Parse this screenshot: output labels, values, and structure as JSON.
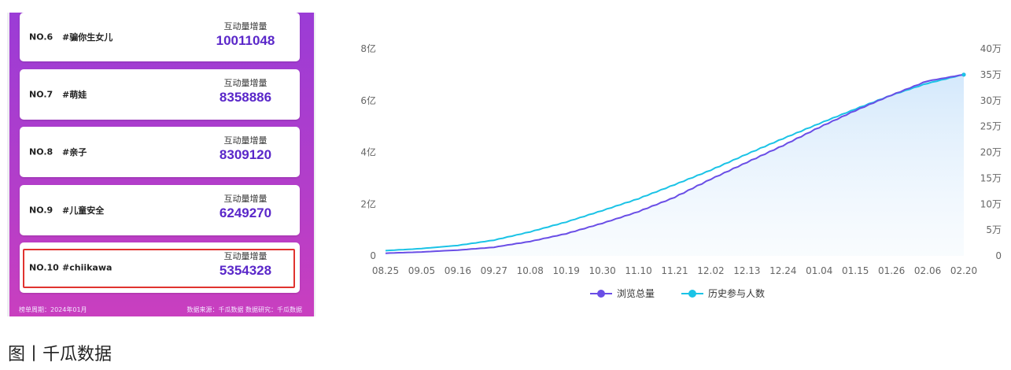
{
  "ranking": {
    "metric_label": "互动量增量",
    "items": [
      {
        "rank": "NO.6",
        "tag": "#骗你生女儿",
        "value": "10011048",
        "highlight": false
      },
      {
        "rank": "NO.7",
        "tag": "#萌娃",
        "value": "8358886",
        "highlight": false
      },
      {
        "rank": "NO.8",
        "tag": "#亲子",
        "value": "8309120",
        "highlight": false
      },
      {
        "rank": "NO.9",
        "tag": "#儿童安全",
        "value": "6249270",
        "highlight": false
      },
      {
        "rank": "NO.10",
        "tag": "#chiikawa",
        "value": "5354328",
        "highlight": true
      }
    ],
    "footer_left": "榜单周期：2024年01月",
    "footer_right": "数据来源：千瓜数据    数据研究：千瓜数据"
  },
  "chart_data": {
    "type": "line",
    "x": [
      "08.25",
      "09.05",
      "09.16",
      "09.27",
      "10.08",
      "10.19",
      "10.30",
      "11.10",
      "11.21",
      "12.02",
      "12.13",
      "12.24",
      "01.04",
      "01.15",
      "01.26",
      "02.06",
      "02.20"
    ],
    "series": [
      {
        "name": "浏览总量",
        "axis": "left",
        "color": "#6a4ee6",
        "values": [
          0.1,
          0.15,
          0.22,
          0.33,
          0.55,
          0.85,
          1.25,
          1.7,
          2.25,
          2.95,
          3.6,
          4.25,
          4.95,
          5.6,
          6.2,
          6.75,
          7.0
        ]
      },
      {
        "name": "历史参与人数",
        "axis": "right",
        "color": "#1bc3e6",
        "values": [
          1.0,
          1.4,
          2.0,
          3.0,
          4.6,
          6.5,
          8.7,
          11.0,
          13.7,
          16.5,
          19.6,
          22.6,
          25.5,
          28.3,
          31.0,
          33.3,
          35.0
        ]
      }
    ],
    "yleft": {
      "ticks": [
        "0",
        "2亿",
        "4亿",
        "6亿",
        "8亿"
      ],
      "range": [
        0,
        8
      ]
    },
    "yright": {
      "ticks": [
        "0",
        "5万",
        "10万",
        "15万",
        "20万",
        "25万",
        "30万",
        "35万",
        "40万"
      ],
      "range": [
        0,
        40
      ]
    },
    "legend_position": "bottom-center",
    "grid": false
  },
  "caption": "图丨千瓜数据"
}
